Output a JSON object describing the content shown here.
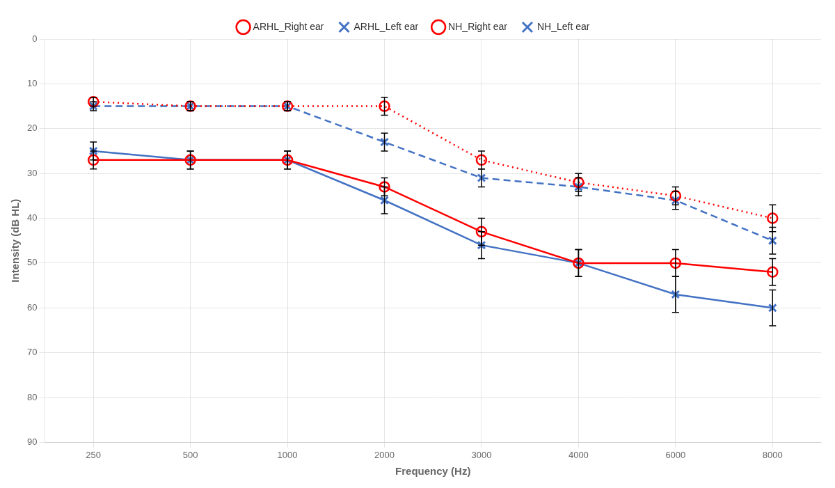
{
  "chart_data": {
    "type": "line",
    "xlabel": "Frequency (Hz)",
    "ylabel": "Intensity (dB HL)",
    "categories": [
      "250",
      "500",
      "1000",
      "2000",
      "3000",
      "4000",
      "6000",
      "8000"
    ],
    "series": [
      {
        "name": "ARHL_Right ear",
        "color": "#FF0000",
        "marker": "circle",
        "line_style": "solid",
        "values": [
          27,
          27,
          27,
          33,
          43,
          50,
          50,
          52
        ],
        "errors": [
          2,
          2,
          2,
          2,
          3,
          3,
          3,
          3
        ]
      },
      {
        "name": "ARHL_Left ear",
        "color": "#4472C4",
        "marker": "x",
        "line_style": "solid",
        "values": [
          25,
          27,
          27,
          36,
          46,
          50,
          57,
          60
        ],
        "errors": [
          2,
          2,
          2,
          3,
          3,
          3,
          4,
          4
        ]
      },
      {
        "name": "NH_Right ear",
        "color": "#FF0000",
        "marker": "circle",
        "line_style": "dotted",
        "values": [
          14,
          15,
          15,
          15,
          27,
          32,
          35,
          40
        ],
        "errors": [
          1,
          1,
          1,
          2,
          2,
          2,
          2,
          3
        ]
      },
      {
        "name": "NH_Left ear",
        "color": "#4472C4",
        "marker": "x",
        "line_style": "dashed",
        "values": [
          15,
          15,
          15,
          23,
          31,
          33,
          36,
          45
        ],
        "errors": [
          1,
          1,
          1,
          2,
          2,
          2,
          2,
          3
        ]
      }
    ],
    "ylim": [
      90,
      0
    ],
    "yticks": [
      0,
      10,
      20,
      30,
      40,
      50,
      60,
      70,
      80,
      90
    ],
    "grid": true,
    "legend": "top"
  }
}
